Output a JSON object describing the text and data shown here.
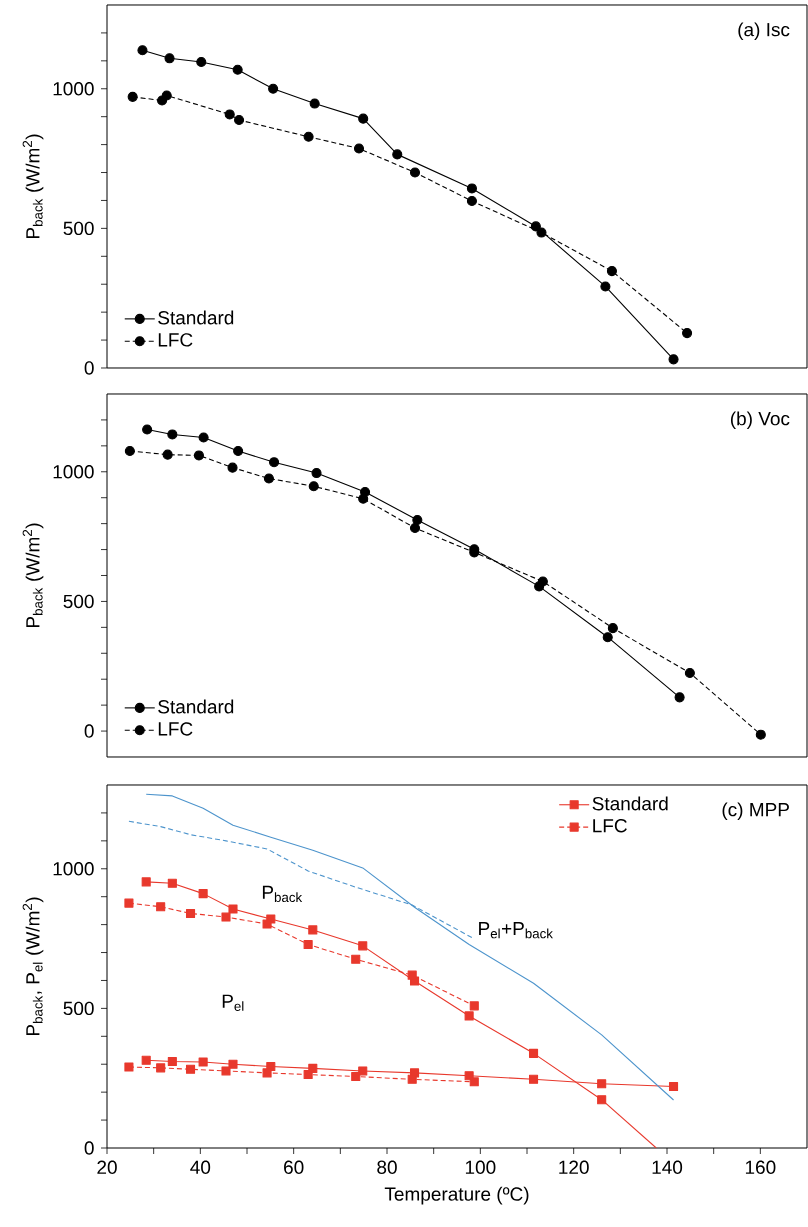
{
  "chart_data": [
    {
      "type": "line",
      "ylabel": "P$_{back}$ (W/m$^{2}$)",
      "annotations": [
        "(a) Isc"
      ],
      "xlim": [
        20,
        170
      ],
      "ylim": [
        0,
        1300
      ],
      "yticks": [
        0,
        {
          "value": 100,
          "label": null
        },
        {
          "value": 200,
          "label": null
        },
        {
          "value": 300,
          "label": null
        },
        {
          "value": 400,
          "label": null
        },
        500,
        {
          "value": 600,
          "label": null
        },
        {
          "value": 700,
          "label": null
        },
        {
          "value": 800,
          "label": null
        },
        {
          "value": 900,
          "label": null
        },
        1000,
        {
          "value": 1100,
          "label": null
        },
        {
          "value": 1200,
          "label": null
        }
      ],
      "tick_labels": "y",
      "legend": "bottom left",
      "marker": "circle",
      "series": [
        {
          "name": "Standard",
          "color": "#000000",
          "line_style": "solid",
          "x": [
            27.6,
            33.4,
            40.2,
            48.0,
            55.6,
            64.5,
            74.9,
            82.2,
            98.2,
            111.9,
            126.8,
            141.4
          ],
          "values": [
            1138,
            1109,
            1096,
            1068,
            1000,
            947,
            893,
            765,
            643,
            507,
            292,
            31
          ]
        },
        {
          "name": "LFC",
          "color": "#000000",
          "line_style": "dashed",
          "x": [
            25.5,
            31.8,
            32.8,
            46.3,
            48.3,
            63.2,
            74.0,
            86.0,
            98.2,
            113.1,
            128.2,
            144.3
          ],
          "values": [
            971,
            958,
            976,
            908,
            888,
            828,
            786,
            700,
            598,
            485,
            347,
            125
          ]
        }
      ]
    },
    {
      "type": "line",
      "ylabel": "P$_{back}$ (W/m$^{2}$)",
      "annotations": [
        "(b) Voc"
      ],
      "xlim": [
        20,
        170
      ],
      "ylim": [
        -100,
        1300
      ],
      "yticks": [
        0,
        {
          "value": 100,
          "label": null
        },
        {
          "value": 200,
          "label": null
        },
        {
          "value": 300,
          "label": null
        },
        {
          "value": 400,
          "label": null
        },
        500,
        {
          "value": 600,
          "label": null
        },
        {
          "value": 700,
          "label": null
        },
        {
          "value": 800,
          "label": null
        },
        {
          "value": 900,
          "label": null
        },
        1000,
        {
          "value": 1100,
          "label": null
        },
        {
          "value": 1200,
          "label": null
        }
      ],
      "tick_labels": "y",
      "legend": "bottom left",
      "marker": "circle",
      "series": [
        {
          "name": "Standard",
          "color": "#000000",
          "line_style": "solid",
          "x": [
            28.6,
            34.0,
            40.7,
            48.1,
            55.8,
            64.9,
            75.3,
            86.5,
            98.7,
            112.6,
            127.3,
            142.7
          ],
          "values": [
            1163,
            1144,
            1132,
            1080,
            1037,
            995,
            922,
            814,
            701,
            558,
            362,
            130
          ]
        },
        {
          "name": "LFC",
          "color": "#000000",
          "line_style": "dashed",
          "x": [
            24.9,
            33.0,
            39.7,
            46.9,
            54.7,
            64.3,
            74.9,
            86.0,
            98.7,
            113.4,
            128.4,
            144.9,
            160.1
          ],
          "values": [
            1080,
            1066,
            1063,
            1016,
            974,
            944,
            896,
            783,
            689,
            577,
            397,
            224,
            -14
          ]
        }
      ]
    },
    {
      "type": "line",
      "ylabel": "P$_{back}$, P$_{el}$ (W/m$^{2}$)",
      "xlabel": "Temperature (ºC)",
      "xlim": [
        20,
        170
      ],
      "ylim": [
        0,
        1300
      ],
      "annotations": [
        "(c) MPP",
        "P$_{back}$",
        "P$_{el}$",
        "P$_{el}$+P$_{back}$"
      ],
      "xticks": [
        20,
        {
          "value": 30,
          "label": null
        },
        40,
        {
          "value": 50,
          "label": null
        },
        60,
        {
          "value": 70,
          "label": null
        },
        80,
        {
          "value": 90,
          "label": null
        },
        100,
        {
          "value": 110,
          "label": null
        },
        120,
        {
          "value": 130,
          "label": null
        },
        140,
        {
          "value": 150,
          "label": null
        },
        160
      ],
      "yticks": [
        0,
        {
          "value": 100,
          "label": null
        },
        {
          "value": 200,
          "label": null
        },
        {
          "value": 300,
          "label": null
        },
        {
          "value": 400,
          "label": null
        },
        500,
        {
          "value": 600,
          "label": null
        },
        {
          "value": 700,
          "label": null
        },
        {
          "value": 800,
          "label": null
        },
        {
          "value": 900,
          "label": null
        },
        1000,
        {
          "value": 1100,
          "label": null
        },
        {
          "value": 1200,
          "label": null
        }
      ],
      "legend": "top right",
      "marker": "square",
      "series": [
        {
          "name": "Standard",
          "color": "#e8382c",
          "line_style": "solid",
          "x": [
            28.4,
            34.0,
            40.6,
            47.0,
            55.1,
            64.1,
            74.8,
            85.9,
            97.6,
            111.4,
            126.0
          ],
          "values": [
            953,
            948,
            911,
            856,
            820,
            781,
            724,
            598,
            473,
            339,
            173
          ]
        },
        {
          "name": "LFC",
          "color": "#e8382c",
          "line_style": "dashed",
          "x": [
            24.7,
            31.5,
            37.9,
            45.5,
            54.3,
            63.1,
            73.3,
            85.4,
            98.7
          ],
          "values": [
            877,
            864,
            840,
            827,
            802,
            729,
            676,
            619,
            509
          ]
        },
        {
          "color": "#e8382c",
          "line_style": "solid",
          "marker": "none",
          "x": [
            126.0,
            137.7
          ],
          "values": [
            173,
            0
          ]
        },
        {
          "color": "#e8382c",
          "line_style": "solid",
          "x": [
            28.4,
            34.0,
            40.6,
            47.0,
            55.1,
            64.1,
            74.8,
            85.9,
            97.6,
            111.4,
            126.0,
            141.4
          ],
          "values": [
            314,
            310,
            308,
            300,
            292,
            285,
            276,
            269,
            259,
            246,
            230,
            220
          ]
        },
        {
          "color": "#e8382c",
          "line_style": "dashed",
          "x": [
            24.7,
            31.5,
            37.9,
            45.5,
            54.3,
            63.1,
            73.3,
            85.4,
            98.7
          ],
          "values": [
            290,
            287,
            282,
            276,
            269,
            263,
            256,
            246,
            237
          ]
        },
        {
          "color": "#4d94cc",
          "line_style": "solid",
          "marker": "none",
          "x": [
            28.4,
            34.0,
            40.6,
            47.0,
            55.1,
            64.1,
            74.8,
            85.9,
            97.6,
            111.4,
            126.0,
            141.4
          ],
          "values": [
            1267,
            1261,
            1217,
            1156,
            1113,
            1066,
            1003,
            862,
            729,
            590,
            405,
            172
          ]
        },
        {
          "color": "#4d94cc",
          "line_style": "dashed",
          "marker": "none",
          "x": [
            24.7,
            31.5,
            37.9,
            45.5,
            54.3,
            63.1,
            73.3,
            85.4,
            98.7
          ],
          "values": [
            1170,
            1151,
            1122,
            1100,
            1071,
            992,
            934,
            870,
            749
          ]
        }
      ]
    }
  ]
}
